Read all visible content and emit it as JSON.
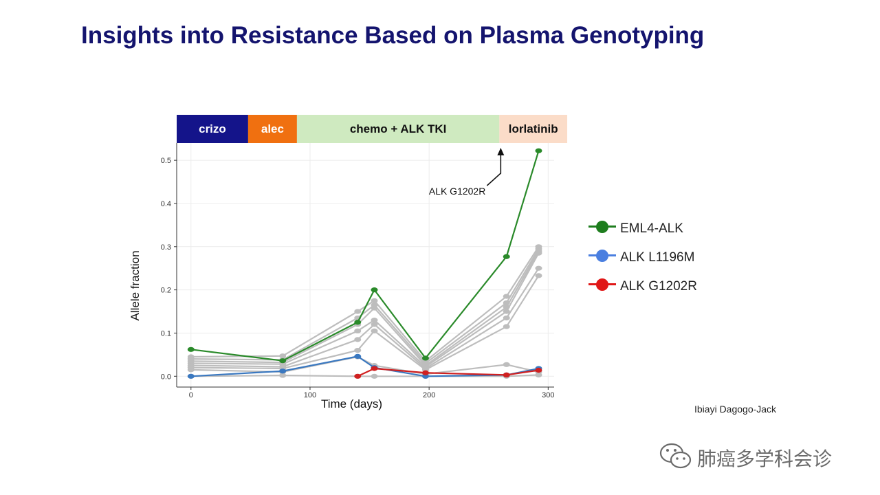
{
  "slide": {
    "title": "Insights into Resistance Based on Plasma Genotyping",
    "credit": "Ibiayi Dagogo-Jack",
    "watermark": "肺癌多学科会诊"
  },
  "legend": [
    {
      "name": "EML4-ALK",
      "color": "#1e7d1e"
    },
    {
      "name": "ALK L1196M",
      "color": "#4a7fe0"
    },
    {
      "name": "ALK G1202R",
      "color": "#e01818"
    }
  ],
  "chart_data": {
    "type": "line",
    "title": "",
    "xlabel": "Time (days)",
    "ylabel": "Allele fraction",
    "xlim": [
      -12,
      305
    ],
    "ylim": [
      -0.025,
      0.54
    ],
    "x_ticks": [
      0,
      100,
      200,
      300
    ],
    "y_ticks": [
      0.0,
      0.1,
      0.2,
      0.3,
      0.4,
      0.5
    ],
    "y_tick_labels": [
      "0.0",
      "0.1",
      "0.2",
      "0.3",
      "0.4",
      "0.5"
    ],
    "grid": true,
    "legend_position": "right",
    "treatment_bands": [
      {
        "label": "crizo",
        "start": -12,
        "end": 48,
        "color": "#14148a",
        "text_color": "#ffffff"
      },
      {
        "label": "alec",
        "start": 48,
        "end": 89,
        "color": "#f07010",
        "text_color": "#ffffff"
      },
      {
        "label": "chemo + ALK TKI",
        "start": 89,
        "end": 259,
        "color": "#cfeac0",
        "text_color": "#111111"
      },
      {
        "label": "lorlatinib",
        "start": 259,
        "end": 316,
        "color": "#fbdcc8",
        "text_color": "#111111"
      }
    ],
    "annotation": {
      "text": "ALK G1202R",
      "x": 259,
      "y": 0.43
    },
    "series": [
      {
        "name": "EML4-ALK",
        "color": "#2a8a2a",
        "x": [
          0,
          77,
          140,
          154,
          197,
          265,
          292
        ],
        "y": [
          0.062,
          0.036,
          0.125,
          0.2,
          0.042,
          0.277,
          0.522
        ]
      },
      {
        "name": "ALK L1196M",
        "color": "#3a78c0",
        "x": [
          0,
          77,
          140,
          154,
          197,
          265,
          292
        ],
        "y": [
          0.0,
          0.012,
          0.046,
          0.02,
          0.0,
          0.003,
          0.018
        ]
      },
      {
        "name": "ALK G1202R",
        "color": "#d02020",
        "x": [
          140,
          154,
          197,
          265,
          292
        ],
        "y": [
          0.0,
          0.018,
          0.008,
          0.003,
          0.014
        ]
      },
      {
        "x": [
          0,
          77,
          140,
          154,
          197,
          265,
          292
        ],
        "y": [
          0.045,
          0.047,
          0.15,
          0.175,
          0.035,
          0.185,
          0.3
        ],
        "color": "#bdbdbd"
      },
      {
        "x": [
          0,
          77,
          140,
          154,
          197,
          265,
          292
        ],
        "y": [
          0.04,
          0.038,
          0.135,
          0.165,
          0.03,
          0.17,
          0.295
        ],
        "color": "#bdbdbd"
      },
      {
        "x": [
          0,
          77,
          140,
          154,
          197,
          265,
          292
        ],
        "y": [
          0.035,
          0.032,
          0.12,
          0.158,
          0.025,
          0.16,
          0.29
        ],
        "color": "#bdbdbd"
      },
      {
        "x": [
          0,
          77,
          140,
          154,
          197,
          265,
          292
        ],
        "y": [
          0.03,
          0.028,
          0.105,
          0.13,
          0.022,
          0.15,
          0.285
        ],
        "color": "#bdbdbd"
      },
      {
        "x": [
          0,
          77,
          140,
          154,
          197,
          265,
          292
        ],
        "y": [
          0.025,
          0.022,
          0.085,
          0.12,
          0.018,
          0.135,
          0.25
        ],
        "color": "#bdbdbd"
      },
      {
        "x": [
          0,
          77,
          140,
          154,
          197,
          265,
          292
        ],
        "y": [
          0.02,
          0.018,
          0.06,
          0.105,
          0.015,
          0.115,
          0.233
        ],
        "color": "#bdbdbd"
      },
      {
        "x": [
          0,
          77,
          140,
          154,
          197,
          265,
          292
        ],
        "y": [
          0.015,
          0.01,
          0.045,
          0.025,
          0.005,
          0.027,
          0.01
        ],
        "color": "#bdbdbd"
      },
      {
        "x": [
          0,
          77,
          140,
          154,
          197,
          265,
          292
        ],
        "y": [
          0.0,
          0.002,
          0.0,
          0.0,
          0.0,
          0.0,
          0.003
        ],
        "color": "#bdbdbd"
      }
    ]
  }
}
